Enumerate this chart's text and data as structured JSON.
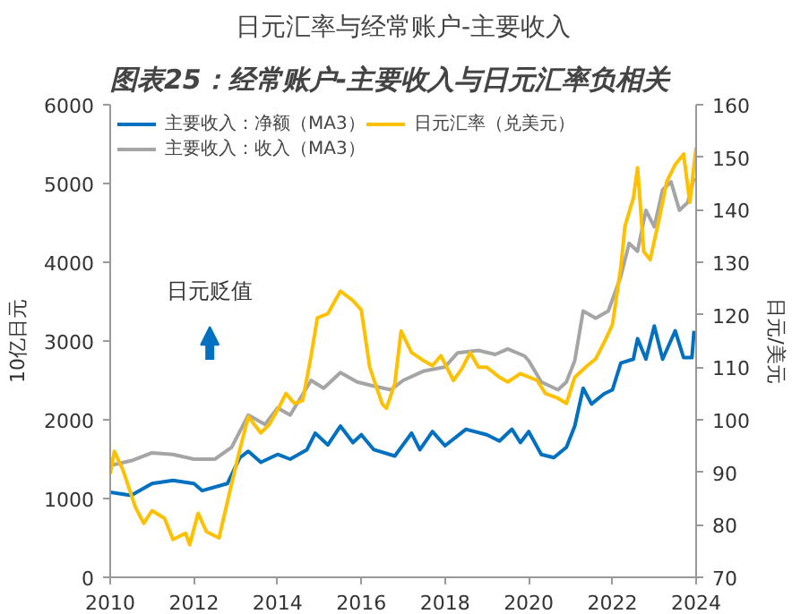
{
  "chart_data": {
    "type": "line",
    "title": "图表25：经常账户-主要收入与日元汇率负相关",
    "subtitle": "日元汇率与经常账户-主要收入",
    "ylabel": "10亿日元",
    "y2label": "日元/美元",
    "annotations": [
      "日元贬值"
    ],
    "xlim": [
      2010,
      2024
    ],
    "xticks": [
      2010,
      2012,
      2014,
      2016,
      2018,
      2020,
      2022,
      2024
    ],
    "ylim": [
      0,
      6000
    ],
    "yticks": [
      0,
      1000,
      2000,
      3000,
      4000,
      5000,
      6000
    ],
    "y2lim": [
      70,
      160
    ],
    "y2ticks": [
      70,
      80,
      90,
      100,
      110,
      120,
      130,
      140,
      150,
      160
    ],
    "legend": "top left",
    "line_style": "solid",
    "marker": "none",
    "series": [
      {
        "name": "主要收入：净额（MA3）",
        "color": "#0070c0",
        "x": [
          2010.0,
          2010.5,
          2011.0,
          2011.5,
          2012.0,
          2012.2,
          2012.8,
          2013.1,
          2013.3,
          2013.6,
          2014.0,
          2014.3,
          2014.7,
          2014.9,
          2015.2,
          2015.5,
          2015.8,
          2016.0,
          2016.3,
          2016.8,
          2017.2,
          2017.4,
          2017.7,
          2018.0,
          2018.5,
          2019.0,
          2019.3,
          2019.6,
          2019.8,
          2020.0,
          2020.3,
          2020.6,
          2020.9,
          2021.1,
          2021.3,
          2021.5,
          2021.8,
          2022.0,
          2022.2,
          2022.5,
          2022.6,
          2022.8,
          2023.0,
          2023.2,
          2023.5,
          2023.7,
          2023.9,
          2023.95
        ],
        "values": [
          1080,
          1040,
          1190,
          1230,
          1190,
          1100,
          1190,
          1520,
          1600,
          1460,
          1560,
          1500,
          1620,
          1830,
          1680,
          1920,
          1710,
          1810,
          1620,
          1540,
          1830,
          1620,
          1850,
          1670,
          1880,
          1810,
          1730,
          1880,
          1710,
          1850,
          1560,
          1520,
          1650,
          1920,
          2400,
          2200,
          2330,
          2380,
          2720,
          2770,
          3030,
          2770,
          3190,
          2770,
          3130,
          2790,
          2790,
          3130
        ]
      },
      {
        "name": "主要收入：收入（MA3）",
        "color": "#a5a5a5",
        "x": [
          2010.0,
          2010.5,
          2011.0,
          2011.5,
          2012.0,
          2012.5,
          2012.9,
          2013.3,
          2013.7,
          2014.0,
          2014.3,
          2014.8,
          2015.1,
          2015.5,
          2015.9,
          2016.2,
          2016.7,
          2017.0,
          2017.5,
          2018.0,
          2018.3,
          2018.8,
          2019.2,
          2019.5,
          2019.9,
          2020.0,
          2020.3,
          2020.7,
          2020.9,
          2021.1,
          2021.3,
          2021.6,
          2021.9,
          2022.2,
          2022.4,
          2022.6,
          2022.8,
          2023.0,
          2023.2,
          2023.4,
          2023.6,
          2023.8,
          2023.95
        ],
        "values": [
          1420,
          1480,
          1580,
          1560,
          1500,
          1500,
          1650,
          2060,
          1940,
          2150,
          2060,
          2500,
          2400,
          2600,
          2480,
          2440,
          2380,
          2500,
          2620,
          2670,
          2850,
          2880,
          2830,
          2900,
          2810,
          2750,
          2480,
          2380,
          2480,
          2750,
          3380,
          3290,
          3380,
          3820,
          4240,
          4140,
          4660,
          4450,
          4920,
          5020,
          4660,
          4760,
          5070
        ]
      },
      {
        "name": "日元汇率（兑美元）",
        "color": "#ffc000",
        "axis": "y2",
        "x": [
          2010.0,
          2010.1,
          2010.3,
          2010.6,
          2010.8,
          2011.0,
          2011.3,
          2011.5,
          2011.8,
          2011.9,
          2012.1,
          2012.3,
          2012.6,
          2012.9,
          2013.1,
          2013.3,
          2013.6,
          2013.8,
          2014.0,
          2014.2,
          2014.4,
          2014.6,
          2014.8,
          2014.95,
          2015.2,
          2015.5,
          2015.8,
          2016.0,
          2016.2,
          2016.5,
          2016.6,
          2016.8,
          2016.95,
          2017.2,
          2017.5,
          2017.7,
          2017.9,
          2018.2,
          2018.4,
          2018.6,
          2018.8,
          2019.0,
          2019.3,
          2019.5,
          2019.8,
          2020.2,
          2020.4,
          2020.7,
          2020.9,
          2021.1,
          2021.4,
          2021.6,
          2021.8,
          2022.0,
          2022.2,
          2022.3,
          2022.5,
          2022.6,
          2022.75,
          2022.9,
          2023.1,
          2023.3,
          2023.5,
          2023.7,
          2023.85,
          2023.95,
          2024.0
        ],
        "values": [
          89.7,
          94,
          90.5,
          83.4,
          80.3,
          82.7,
          81.2,
          77.2,
          78.4,
          76.2,
          82.2,
          78.7,
          77.5,
          87.8,
          94.4,
          100.6,
          97.5,
          99.1,
          101.9,
          105,
          103.1,
          103.7,
          112.2,
          119.4,
          120.2,
          124.5,
          122.7,
          120.9,
          110,
          103,
          102.2,
          106.9,
          116.9,
          112.8,
          111.2,
          110.3,
          112.2,
          107.5,
          109.7,
          112.8,
          110,
          110,
          108.1,
          107.2,
          108.8,
          107.5,
          105,
          104.1,
          103.1,
          108.1,
          110.3,
          111.6,
          114.7,
          118.1,
          129,
          136.9,
          142.2,
          148,
          132,
          130.5,
          137.6,
          145.4,
          148.6,
          150.6,
          141.4,
          148.6,
          151.8
        ]
      }
    ]
  }
}
